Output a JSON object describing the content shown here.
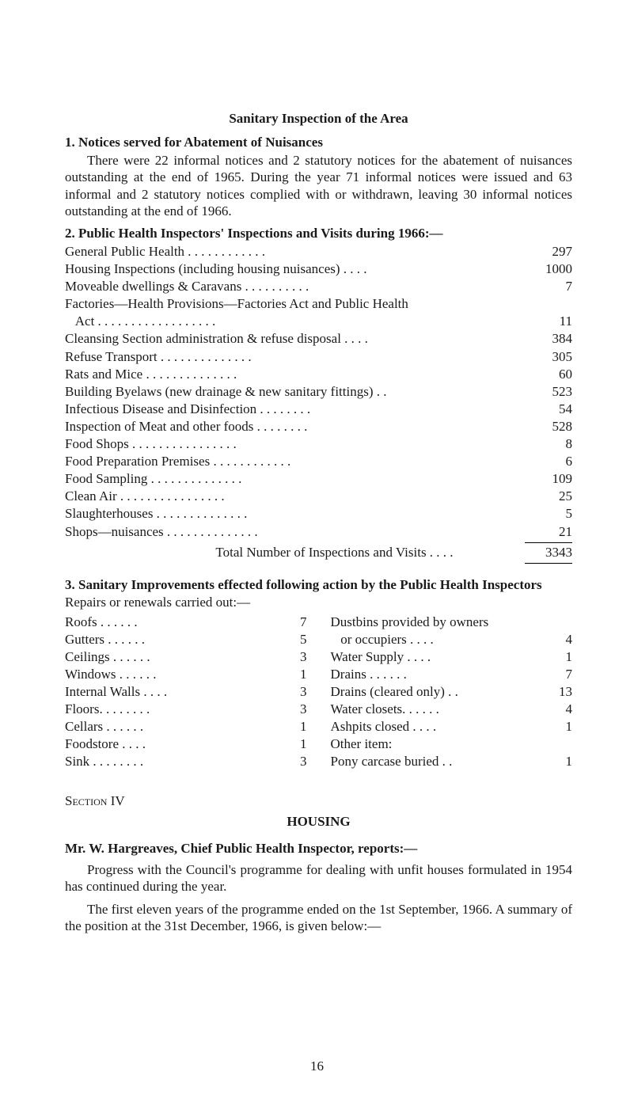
{
  "title_main": "Sanitary Inspection of the Area",
  "section1": {
    "heading": "1.  Notices served for Abatement of Nuisances",
    "para": "There were 22 informal notices and 2 statutory notices for the abatement of nuisances outstanding at the end of 1965. During the year 71 informal notices were issued and 63 informal and 2 statutory notices complied with or withdrawn, leaving 30 informal notices outstanding at the end of 1966."
  },
  "section2": {
    "heading": "2.  Public Health Inspectors' Inspections and Visits during 1966:—",
    "rows": [
      {
        "label": "General Public Health   . .   . .   . .   . .   . .   . .",
        "value": "297"
      },
      {
        "label": "Housing Inspections (including housing nuisances)   . .   . .",
        "value": "1000"
      },
      {
        "label": "Moveable dwellings & Caravans   . .   . .   . .   . .   . .",
        "value": "7"
      },
      {
        "label": "Factories—Health Provisions—Factories Act and Public Health",
        "value": ""
      },
      {
        "label": "   Act . .   . .   . .   . .   . .   . .   . .   . .   . .",
        "value": "11"
      },
      {
        "label": "Cleansing Section administration & refuse disposal   . .   . .",
        "value": "384"
      },
      {
        "label": "Refuse Transport   . .   . .   . .   . .   . .   . .   . .",
        "value": "305"
      },
      {
        "label": "Rats and Mice   . .   . .   . .   . .   . .   . .   . .",
        "value": "60"
      },
      {
        "label": "Building Byelaws (new drainage & new sanitary fittings)   . .",
        "value": "523"
      },
      {
        "label": "Infectious Disease and Disinfection   . .   . .   . .   . .",
        "value": "54"
      },
      {
        "label": "Inspection of Meat and other foods   . .   . .   . .   . .",
        "value": "528"
      },
      {
        "label": "Food Shops . .   . .   . .   . .   . .   . .   . .   . .",
        "value": "8"
      },
      {
        "label": "Food Preparation Premises   . .   . .   . .   . .   . .   . .",
        "value": "6"
      },
      {
        "label": "Food Sampling   . .   . .   . .   . .   . .   . .   . .",
        "value": "109"
      },
      {
        "label": "Clean Air   . .   . .   . .   . .   . .   . .   . .   . .",
        "value": "25"
      },
      {
        "label": "Slaughterhouses   . .   . .   . .   . .   . .   . .   . .",
        "value": "5"
      },
      {
        "label": "Shops—nuisances   . .   . .   . .   . .   . .   . .   . .",
        "value": "21"
      }
    ],
    "total_label": "Total Number of Inspections and Visits   . .   . .",
    "total_value": "3343"
  },
  "section3": {
    "heading": "3.  Sanitary Improvements effected following action by the Public Health Inspectors",
    "subtitle": "Repairs or renewals carried out:—",
    "left": [
      {
        "label": "Roofs   . .   . .   . .",
        "value": "7"
      },
      {
        "label": "Gutters   . .   . .   . .",
        "value": "5"
      },
      {
        "label": "Ceilings   . .   . .   . .",
        "value": "3"
      },
      {
        "label": "Windows   . .   . .   . .",
        "value": "1"
      },
      {
        "label": "Internal Walls   . .   . .",
        "value": "3"
      },
      {
        "label": "Floors. .   . .   . .   . .",
        "value": "3"
      },
      {
        "label": "Cellars   . .   . .   . .",
        "value": "1"
      },
      {
        "label": "Foodstore   . .   . .",
        "value": "1"
      },
      {
        "label": "Sink  . .   . .   . .   . .",
        "value": "3"
      }
    ],
    "right": [
      {
        "label": "Dustbins provided by owners",
        "value": ""
      },
      {
        "label": "   or occupiers   . .   . .",
        "value": "4"
      },
      {
        "label": "Water Supply   . .   . .",
        "value": "1"
      },
      {
        "label": "Drains   . .   . .   . .",
        "value": "7"
      },
      {
        "label": "Drains (cleared only)   . .",
        "value": "13"
      },
      {
        "label": "Water closets. .   . .   . .",
        "value": "4"
      },
      {
        "label": "Ashpits closed   . .   . .",
        "value": "1"
      },
      {
        "label": "Other item:",
        "value": ""
      },
      {
        "label": "Pony carcase buried   . .",
        "value": "1"
      }
    ]
  },
  "section4": {
    "label": "Section IV",
    "title": "HOUSING",
    "mrline": "Mr. W. Hargreaves, Chief Public Health Inspector, reports:—",
    "para1": "Progress with the Council's programme for dealing with unfit houses formulated in 1954 has continued during the year.",
    "para2": "The first eleven years of the programme ended on the 1st September, 1966. A summary of the position at the 31st December, 1966, is given below:—"
  },
  "page_number": "16"
}
